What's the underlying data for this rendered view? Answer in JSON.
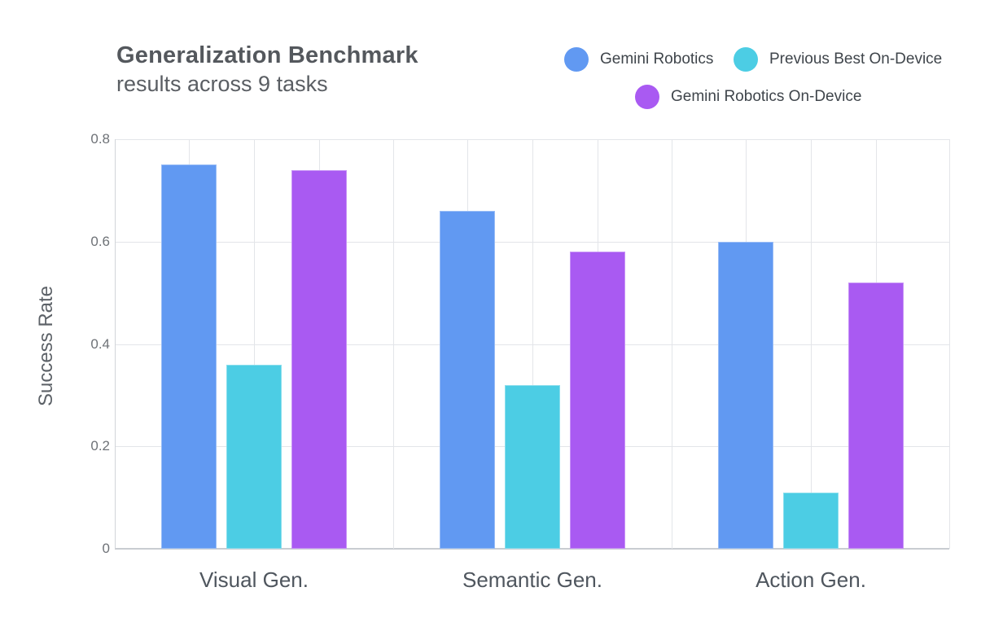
{
  "header": {
    "title": "Generalization Benchmark",
    "subtitle": "results across 9 tasks"
  },
  "legend": [
    {
      "label": "Gemini Robotics",
      "color": "#6199f2"
    },
    {
      "label": "Previous Best On-Device",
      "color": "#4ccde4"
    },
    {
      "label": "Gemini Robotics On-Device",
      "color": "#a95af2"
    }
  ],
  "chart_data": {
    "type": "bar",
    "title": "Generalization Benchmark",
    "subtitle": "results across 9 tasks",
    "categories": [
      "Visual Gen.",
      "Semantic Gen.",
      "Action Gen."
    ],
    "series": [
      {
        "name": "Gemini Robotics",
        "color": "#6199f2",
        "values": [
          0.75,
          0.66,
          0.6
        ]
      },
      {
        "name": "Previous Best On-Device",
        "color": "#4ccde4",
        "values": [
          0.36,
          0.32,
          0.11
        ]
      },
      {
        "name": "Gemini Robotics On-Device",
        "color": "#a95af2",
        "values": [
          0.74,
          0.58,
          0.52
        ]
      }
    ],
    "xlabel": "",
    "ylabel": "Success Rate",
    "ylim": [
      0,
      0.8
    ],
    "yticks": [
      0,
      0.2,
      0.4,
      0.6,
      0.8
    ],
    "ytick_labels": [
      "0",
      "0.2",
      "0.4",
      "0.6",
      "0.8"
    ],
    "grid": true,
    "legend_position": "top-right",
    "colors": {
      "gridline": "#e3e5e9",
      "baseline": "#c9ccd1",
      "title_text": "#54585d",
      "axis_text": "#6e7277",
      "category_text": "#4f565e"
    }
  }
}
